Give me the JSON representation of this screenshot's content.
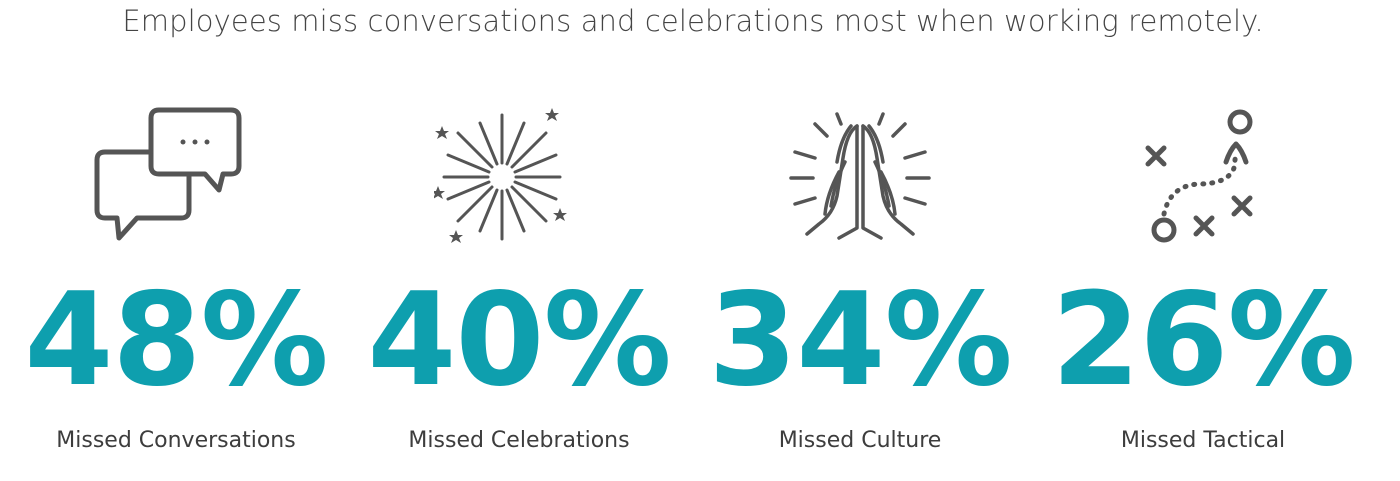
{
  "headline": "Employees miss conversations and celebrations most when working remotely.",
  "colors": {
    "value": "#0e9fae",
    "icon": "#555555",
    "text": "#3d3d3d"
  },
  "chart_data": {
    "type": "table",
    "title": "Employees miss conversations and celebrations most when working remotely.",
    "unit": "%",
    "categories": [
      "Missed Conversations",
      "Missed Celebrations",
      "Missed Culture",
      "Missed Tactical"
    ],
    "values": [
      48,
      40,
      34,
      26
    ]
  },
  "stats": [
    {
      "icon": "chat-bubbles-icon",
      "value": "48%",
      "label": "Missed Conversations"
    },
    {
      "icon": "fireworks-icon",
      "value": "40%",
      "label": "Missed Celebrations"
    },
    {
      "icon": "praying-hands-icon",
      "value": "34%",
      "label": "Missed Culture"
    },
    {
      "icon": "tactical-play-icon",
      "value": "26%",
      "label": "Missed Tactical"
    }
  ]
}
